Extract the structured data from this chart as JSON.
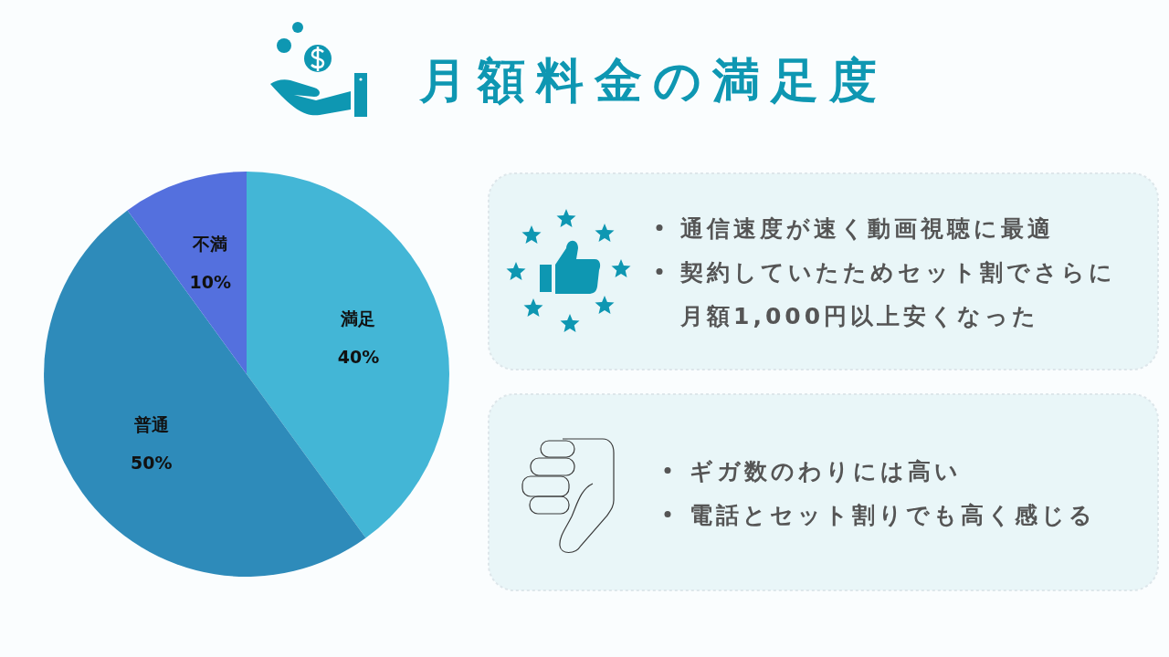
{
  "chart_data": [
    {
      "type": "pie",
      "title": "月額料金の満足度",
      "categories": [
        "満足",
        "普通",
        "不満"
      ],
      "values": [
        40,
        50,
        10
      ],
      "colors": [
        "#43b6d6",
        "#2e8bba",
        "#5470de"
      ],
      "value_labels": [
        "40%",
        "50%",
        "10%"
      ]
    },
    {
      "type": "other",
      "annotations": [
        "通信速度が速く動画視聴に最適",
        "契約していたためセット割でさらに月額1,000円以上安くなった"
      ]
    },
    {
      "type": "other",
      "annotations": [
        "ギガ数のわりには高い",
        "電話とセット割りでも高く感じる"
      ]
    }
  ]
}
